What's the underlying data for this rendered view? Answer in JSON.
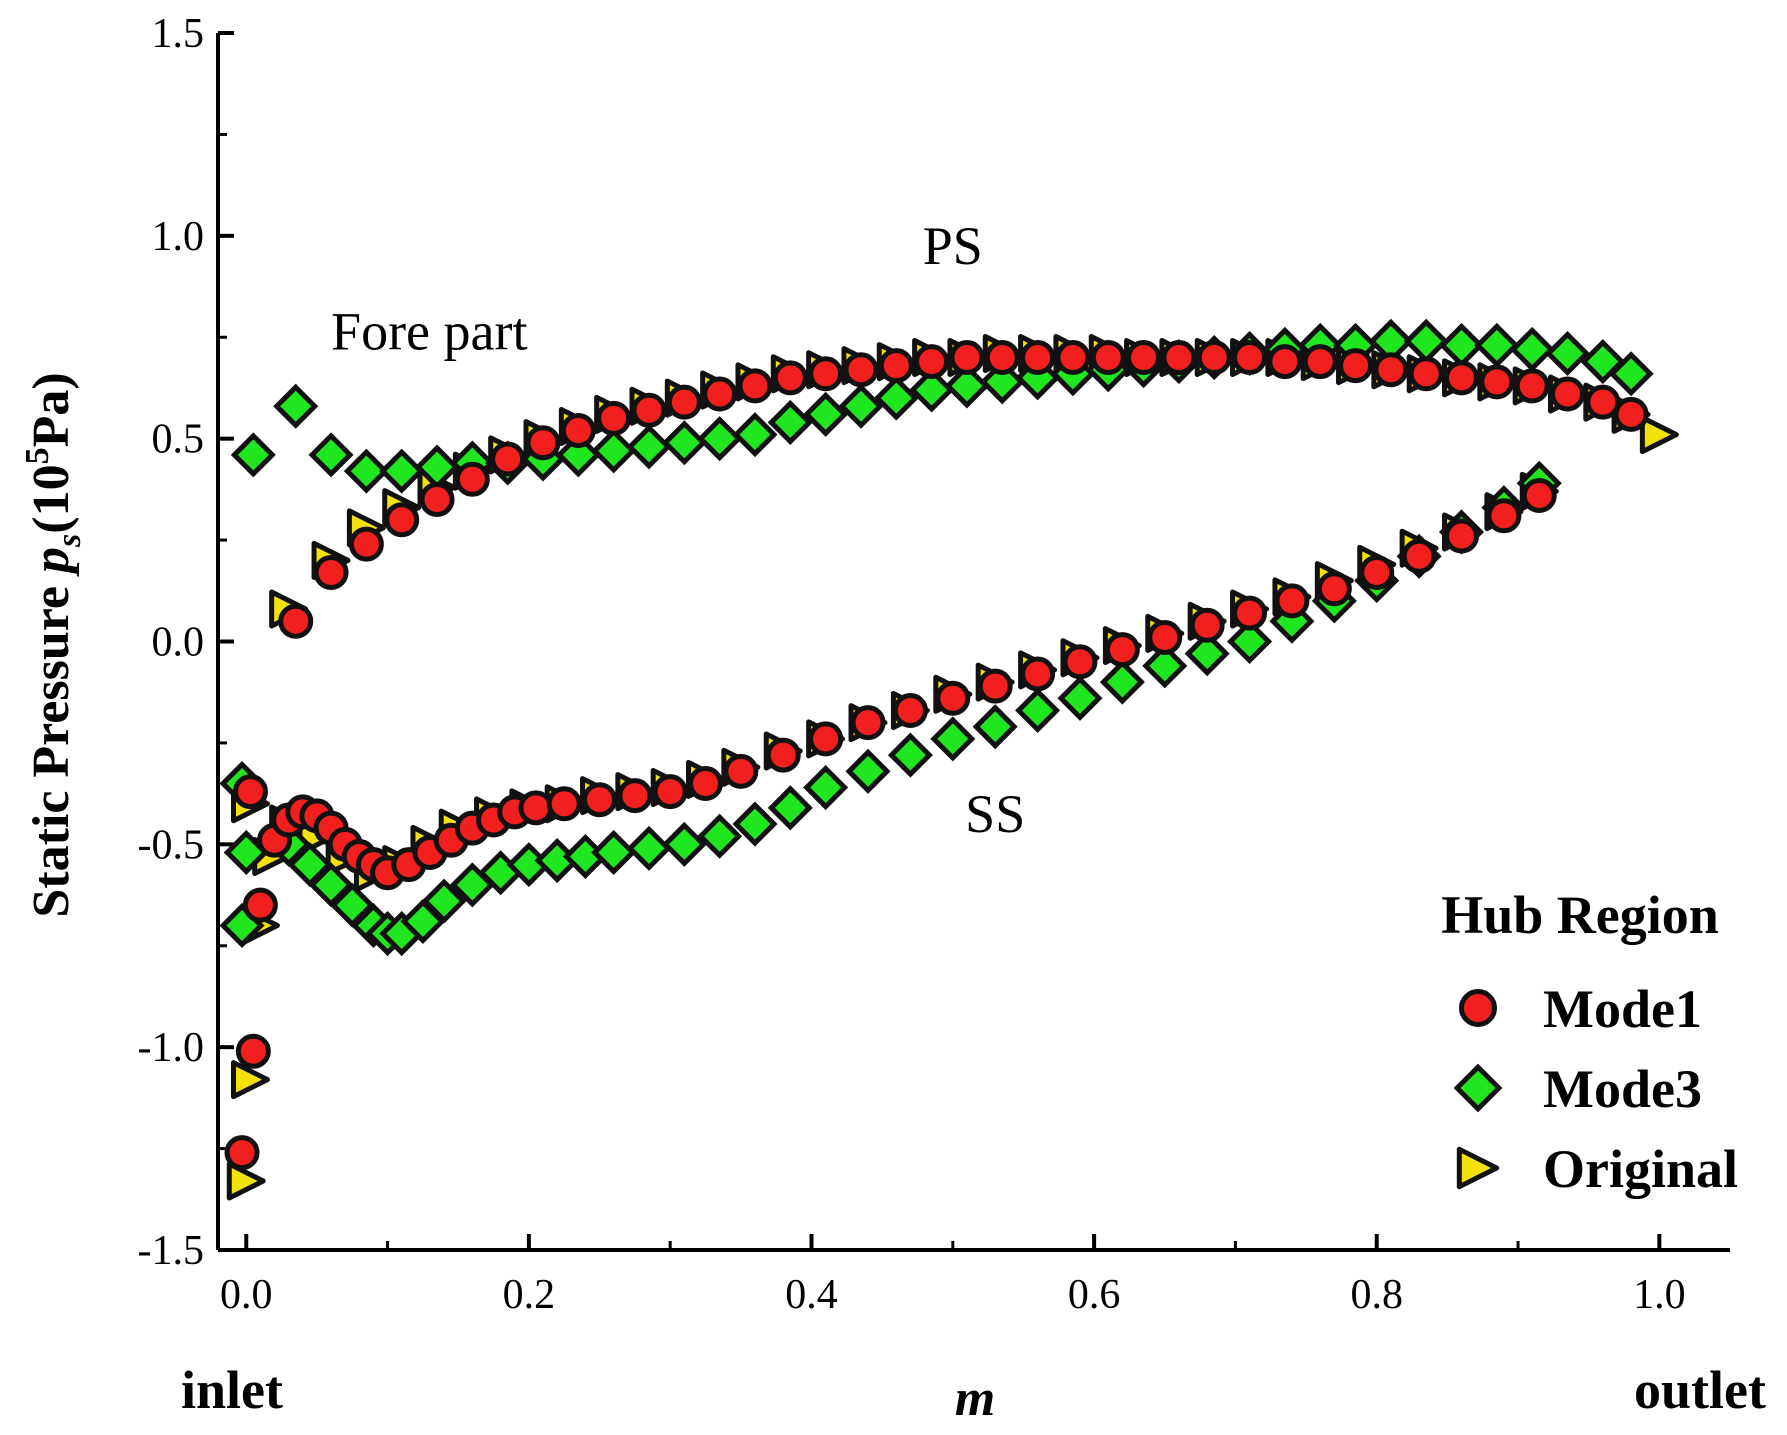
{
  "chart_data": {
    "type": "scatter",
    "title": "",
    "xlabel": "m",
    "ylabel_main": "Static Pressure ",
    "ylabel_sym": "p",
    "ylabel_sub": "s",
    "ylabel_unit_open": "(10",
    "ylabel_unit_sup": "5",
    "ylabel_unit_close": "Pa)",
    "xlim": [
      -0.02,
      1.05
    ],
    "ylim": [
      -1.5,
      1.5
    ],
    "x_ticks": [
      0.0,
      0.2,
      0.4,
      0.6,
      0.8,
      1.0
    ],
    "x_tick_labels": [
      "0.0",
      "0.2",
      "0.4",
      "0.6",
      "0.8",
      "1.0"
    ],
    "y_ticks": [
      -1.5,
      -1.0,
      -0.5,
      0.0,
      0.5,
      1.0,
      1.5
    ],
    "y_tick_labels": [
      "-1.5",
      "-1.0",
      "-0.5",
      "0.0",
      "0.5",
      "1.0",
      "1.5"
    ],
    "x_end_labels": {
      "left": "inlet",
      "right": "outlet"
    },
    "annotations": [
      {
        "text": "PS",
        "x": 0.5,
        "y": 0.93
      },
      {
        "text": "Fore part",
        "x": 0.06,
        "y": 0.72
      },
      {
        "text": "SS",
        "x": 0.53,
        "y": -0.47
      }
    ],
    "legend": {
      "title": "Hub Region",
      "placement": "bottom-right"
    },
    "series": [
      {
        "name": "Original",
        "marker": "triangle-right",
        "color": "#f2e20a",
        "ps": [
          [
            0.03,
            0.08
          ],
          [
            0.06,
            0.2
          ],
          [
            0.085,
            0.28
          ],
          [
            0.11,
            0.33
          ],
          [
            0.135,
            0.38
          ],
          [
            0.16,
            0.42
          ],
          [
            0.185,
            0.46
          ],
          [
            0.21,
            0.5
          ],
          [
            0.235,
            0.53
          ],
          [
            0.26,
            0.56
          ],
          [
            0.285,
            0.58
          ],
          [
            0.31,
            0.6
          ],
          [
            0.335,
            0.62
          ],
          [
            0.36,
            0.64
          ],
          [
            0.385,
            0.66
          ],
          [
            0.41,
            0.67
          ],
          [
            0.435,
            0.68
          ],
          [
            0.46,
            0.69
          ],
          [
            0.485,
            0.7
          ],
          [
            0.51,
            0.7
          ],
          [
            0.535,
            0.71
          ],
          [
            0.56,
            0.71
          ],
          [
            0.585,
            0.71
          ],
          [
            0.61,
            0.71
          ],
          [
            0.635,
            0.7
          ],
          [
            0.66,
            0.7
          ],
          [
            0.685,
            0.7
          ],
          [
            0.71,
            0.7
          ],
          [
            0.735,
            0.7
          ],
          [
            0.76,
            0.69
          ],
          [
            0.785,
            0.68
          ],
          [
            0.81,
            0.67
          ],
          [
            0.835,
            0.66
          ],
          [
            0.86,
            0.65
          ],
          [
            0.885,
            0.64
          ],
          [
            0.91,
            0.63
          ],
          [
            0.935,
            0.61
          ],
          [
            0.96,
            0.59
          ],
          [
            0.98,
            0.56
          ],
          [
            1.0,
            0.51
          ]
        ],
        "ss": [
          [
            0.0,
            -1.33
          ],
          [
            0.003,
            -1.08
          ],
          [
            0.01,
            -0.7
          ],
          [
            0.018,
            -0.53
          ],
          [
            0.003,
            -0.4
          ],
          [
            0.03,
            -0.45
          ],
          [
            0.05,
            -0.48
          ],
          [
            0.07,
            -0.53
          ],
          [
            0.09,
            -0.57
          ],
          [
            0.11,
            -0.55
          ],
          [
            0.13,
            -0.5
          ],
          [
            0.15,
            -0.46
          ],
          [
            0.175,
            -0.43
          ],
          [
            0.2,
            -0.41
          ],
          [
            0.225,
            -0.4
          ],
          [
            0.25,
            -0.38
          ],
          [
            0.275,
            -0.37
          ],
          [
            0.3,
            -0.36
          ],
          [
            0.325,
            -0.34
          ],
          [
            0.35,
            -0.31
          ],
          [
            0.38,
            -0.27
          ],
          [
            0.41,
            -0.24
          ],
          [
            0.44,
            -0.2
          ],
          [
            0.47,
            -0.17
          ],
          [
            0.5,
            -0.13
          ],
          [
            0.53,
            -0.1
          ],
          [
            0.56,
            -0.07
          ],
          [
            0.59,
            -0.04
          ],
          [
            0.62,
            -0.01
          ],
          [
            0.65,
            0.02
          ],
          [
            0.68,
            0.05
          ],
          [
            0.71,
            0.08
          ],
          [
            0.74,
            0.11
          ],
          [
            0.77,
            0.15
          ],
          [
            0.8,
            0.19
          ],
          [
            0.83,
            0.23
          ],
          [
            0.86,
            0.27
          ],
          [
            0.89,
            0.32
          ],
          [
            0.915,
            0.37
          ]
        ]
      },
      {
        "name": "Mode3",
        "marker": "diamond",
        "color": "#1fe61f",
        "ps": [
          [
            0.005,
            0.46
          ],
          [
            0.035,
            0.58
          ],
          [
            0.06,
            0.46
          ],
          [
            0.085,
            0.42
          ],
          [
            0.11,
            0.42
          ],
          [
            0.135,
            0.43
          ],
          [
            0.16,
            0.44
          ],
          [
            0.185,
            0.44
          ],
          [
            0.21,
            0.45
          ],
          [
            0.235,
            0.46
          ],
          [
            0.26,
            0.47
          ],
          [
            0.285,
            0.48
          ],
          [
            0.31,
            0.49
          ],
          [
            0.335,
            0.5
          ],
          [
            0.36,
            0.51
          ],
          [
            0.385,
            0.54
          ],
          [
            0.41,
            0.56
          ],
          [
            0.435,
            0.58
          ],
          [
            0.46,
            0.6
          ],
          [
            0.485,
            0.62
          ],
          [
            0.51,
            0.63
          ],
          [
            0.535,
            0.64
          ],
          [
            0.56,
            0.65
          ],
          [
            0.585,
            0.66
          ],
          [
            0.61,
            0.67
          ],
          [
            0.635,
            0.68
          ],
          [
            0.66,
            0.69
          ],
          [
            0.685,
            0.7
          ],
          [
            0.71,
            0.71
          ],
          [
            0.735,
            0.72
          ],
          [
            0.76,
            0.73
          ],
          [
            0.785,
            0.73
          ],
          [
            0.81,
            0.74
          ],
          [
            0.835,
            0.74
          ],
          [
            0.86,
            0.73
          ],
          [
            0.885,
            0.73
          ],
          [
            0.91,
            0.72
          ],
          [
            0.935,
            0.71
          ],
          [
            0.96,
            0.69
          ],
          [
            0.98,
            0.66
          ]
        ],
        "ss": [
          [
            -0.003,
            -0.35
          ],
          [
            0.0,
            -0.52
          ],
          [
            -0.003,
            -0.7
          ],
          [
            0.03,
            -0.5
          ],
          [
            0.045,
            -0.55
          ],
          [
            0.06,
            -0.6
          ],
          [
            0.075,
            -0.65
          ],
          [
            0.09,
            -0.7
          ],
          [
            0.1,
            -0.72
          ],
          [
            0.11,
            -0.72
          ],
          [
            0.125,
            -0.69
          ],
          [
            0.14,
            -0.64
          ],
          [
            0.16,
            -0.6
          ],
          [
            0.18,
            -0.57
          ],
          [
            0.2,
            -0.55
          ],
          [
            0.22,
            -0.54
          ],
          [
            0.24,
            -0.53
          ],
          [
            0.26,
            -0.52
          ],
          [
            0.285,
            -0.51
          ],
          [
            0.31,
            -0.5
          ],
          [
            0.335,
            -0.48
          ],
          [
            0.36,
            -0.45
          ],
          [
            0.385,
            -0.41
          ],
          [
            0.41,
            -0.36
          ],
          [
            0.44,
            -0.32
          ],
          [
            0.47,
            -0.28
          ],
          [
            0.5,
            -0.24
          ],
          [
            0.53,
            -0.21
          ],
          [
            0.56,
            -0.17
          ],
          [
            0.59,
            -0.14
          ],
          [
            0.62,
            -0.1
          ],
          [
            0.65,
            -0.06
          ],
          [
            0.68,
            -0.03
          ],
          [
            0.71,
            0.0
          ],
          [
            0.74,
            0.05
          ],
          [
            0.77,
            0.1
          ],
          [
            0.8,
            0.15
          ],
          [
            0.83,
            0.21
          ],
          [
            0.86,
            0.27
          ],
          [
            0.89,
            0.33
          ],
          [
            0.915,
            0.39
          ]
        ]
      },
      {
        "name": "Mode1",
        "marker": "circle",
        "color": "#f21f1f",
        "ps": [
          [
            0.035,
            0.05
          ],
          [
            0.06,
            0.17
          ],
          [
            0.085,
            0.24
          ],
          [
            0.11,
            0.3
          ],
          [
            0.135,
            0.35
          ],
          [
            0.16,
            0.4
          ],
          [
            0.185,
            0.45
          ],
          [
            0.21,
            0.49
          ],
          [
            0.235,
            0.52
          ],
          [
            0.26,
            0.55
          ],
          [
            0.285,
            0.57
          ],
          [
            0.31,
            0.59
          ],
          [
            0.335,
            0.61
          ],
          [
            0.36,
            0.63
          ],
          [
            0.385,
            0.65
          ],
          [
            0.41,
            0.66
          ],
          [
            0.435,
            0.67
          ],
          [
            0.46,
            0.68
          ],
          [
            0.485,
            0.69
          ],
          [
            0.51,
            0.7
          ],
          [
            0.535,
            0.7
          ],
          [
            0.56,
            0.7
          ],
          [
            0.585,
            0.7
          ],
          [
            0.61,
            0.7
          ],
          [
            0.635,
            0.7
          ],
          [
            0.66,
            0.7
          ],
          [
            0.685,
            0.7
          ],
          [
            0.71,
            0.7
          ],
          [
            0.735,
            0.69
          ],
          [
            0.76,
            0.69
          ],
          [
            0.785,
            0.68
          ],
          [
            0.81,
            0.67
          ],
          [
            0.835,
            0.66
          ],
          [
            0.86,
            0.65
          ],
          [
            0.885,
            0.64
          ],
          [
            0.91,
            0.63
          ],
          [
            0.935,
            0.61
          ],
          [
            0.96,
            0.59
          ],
          [
            0.98,
            0.56
          ]
        ],
        "ss": [
          [
            -0.003,
            -1.26
          ],
          [
            0.005,
            -1.01
          ],
          [
            0.01,
            -0.65
          ],
          [
            0.003,
            -0.37
          ],
          [
            0.02,
            -0.49
          ],
          [
            0.03,
            -0.44
          ],
          [
            0.04,
            -0.42
          ],
          [
            0.05,
            -0.43
          ],
          [
            0.06,
            -0.46
          ],
          [
            0.07,
            -0.5
          ],
          [
            0.08,
            -0.53
          ],
          [
            0.09,
            -0.55
          ],
          [
            0.1,
            -0.57
          ],
          [
            0.115,
            -0.55
          ],
          [
            0.13,
            -0.52
          ],
          [
            0.145,
            -0.49
          ],
          [
            0.16,
            -0.46
          ],
          [
            0.175,
            -0.44
          ],
          [
            0.19,
            -0.42
          ],
          [
            0.205,
            -0.41
          ],
          [
            0.225,
            -0.4
          ],
          [
            0.25,
            -0.39
          ],
          [
            0.275,
            -0.38
          ],
          [
            0.3,
            -0.37
          ],
          [
            0.325,
            -0.35
          ],
          [
            0.35,
            -0.32
          ],
          [
            0.38,
            -0.28
          ],
          [
            0.41,
            -0.24
          ],
          [
            0.44,
            -0.2
          ],
          [
            0.47,
            -0.17
          ],
          [
            0.5,
            -0.14
          ],
          [
            0.53,
            -0.11
          ],
          [
            0.56,
            -0.08
          ],
          [
            0.59,
            -0.05
          ],
          [
            0.62,
            -0.02
          ],
          [
            0.65,
            0.01
          ],
          [
            0.68,
            0.04
          ],
          [
            0.71,
            0.07
          ],
          [
            0.74,
            0.1
          ],
          [
            0.77,
            0.13
          ],
          [
            0.8,
            0.17
          ],
          [
            0.83,
            0.21
          ],
          [
            0.86,
            0.26
          ],
          [
            0.89,
            0.31
          ],
          [
            0.915,
            0.36
          ]
        ]
      }
    ]
  }
}
